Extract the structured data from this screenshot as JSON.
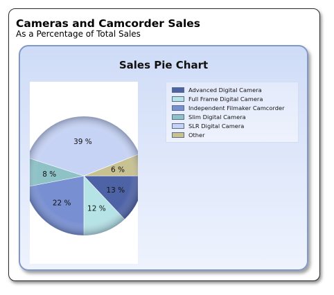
{
  "report": {
    "title": "Cameras and Camcorder Sales",
    "subtitle": "As a Percentage of Total Sales"
  },
  "chart_data": {
    "type": "pie",
    "title": "Sales Pie Chart",
    "legend_position": "top-right",
    "series": [
      {
        "name": "Advanced Digital Camera",
        "value": 13,
        "label": "13 %",
        "color": "#4e62a6"
      },
      {
        "name": "Full Frame Digital Camera",
        "value": 12,
        "label": "12 %",
        "color": "#b5e3e6"
      },
      {
        "name": "Independent Filmaker Camcorder",
        "value": 22,
        "label": "22 %",
        "color": "#788fd2"
      },
      {
        "name": "Slim Digital Camera",
        "value": 8,
        "label": "8 %",
        "color": "#8ec2c7"
      },
      {
        "name": "SLR Digital Camera",
        "value": 39,
        "label": "39 %",
        "color": "#c6d3f4"
      },
      {
        "name": "Other",
        "value": 6,
        "label": "6 %",
        "color": "#c8c192"
      }
    ]
  }
}
